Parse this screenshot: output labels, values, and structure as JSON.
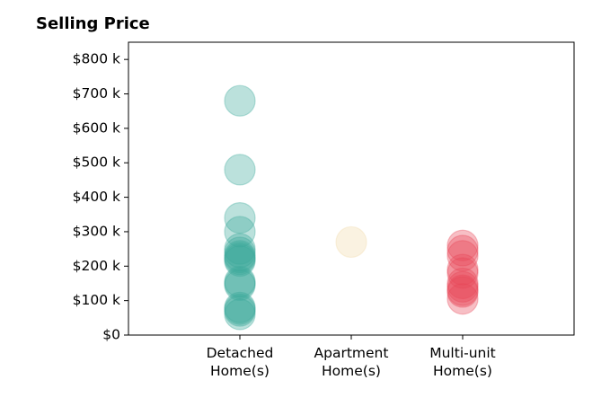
{
  "chart_data": {
    "type": "scatter",
    "title": "Selling Price",
    "xlabel": "",
    "ylabel": "",
    "categories": [
      "Detached\nHome(s)",
      "Apartment\nHome(s)",
      "Multi-unit\nHome(s)"
    ],
    "ylim": [
      0,
      850000
    ],
    "y_ticks": [
      0,
      100000,
      200000,
      300000,
      400000,
      500000,
      600000,
      700000,
      800000
    ],
    "y_tick_labels": [
      "$0",
      "$100 k",
      "$200 k",
      "$300 k",
      "$400 k",
      "$500 k",
      "$600 k",
      "$700 k",
      "$800 k"
    ],
    "grid": false,
    "legend": "none",
    "series": [
      {
        "category": "Detached\nHome(s)",
        "color": "#3ba99a",
        "values": [
          680000,
          480000,
          340000,
          300000,
          250000,
          240000,
          230000,
          225000,
          220000,
          215000,
          155000,
          150000,
          145000,
          80000,
          75000,
          70000,
          60000
        ]
      },
      {
        "category": "Apartment\nHome(s)",
        "color": "#f2d9a8",
        "values": [
          270000
        ]
      },
      {
        "category": "Multi-unit\nHome(s)",
        "color": "#e84858",
        "values": [
          260000,
          245000,
          230000,
          190000,
          180000,
          150000,
          140000,
          130000,
          125000,
          105000
        ]
      }
    ]
  }
}
